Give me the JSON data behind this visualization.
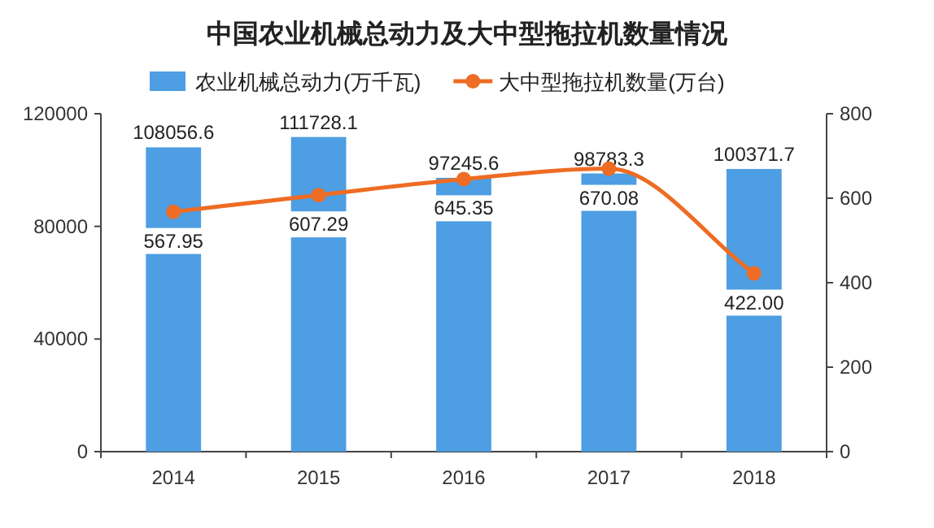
{
  "chart_data": {
    "type": "bar",
    "title": "中国农业机械总动力及大中型拖拉机数量情况",
    "categories": [
      "2014",
      "2015",
      "2016",
      "2017",
      "2018"
    ],
    "series": [
      {
        "name": "农业机械总动力(万千瓦)",
        "color": "#4d9ee2",
        "values": [
          108056.6,
          111728.1,
          97245.6,
          98783.3,
          100371.7
        ],
        "value_labels": [
          "108056.6",
          "111728.1",
          "97245.6",
          "98783.3",
          "100371.7"
        ]
      },
      {
        "name": "大中型拖拉机数量(万台)",
        "type": "line",
        "axis": "y2",
        "color": "#ee6c23",
        "marker": "circle",
        "values": [
          567.95,
          607.29,
          645.35,
          670.08,
          422.0
        ],
        "value_labels": [
          "567.95",
          "607.29",
          "645.35",
          "670.08",
          "422.00"
        ]
      }
    ],
    "ylim": [
      0,
      120000
    ],
    "yticks": [
      0,
      40000,
      80000,
      120000
    ],
    "y2lim": [
      0,
      800
    ],
    "y2ticks": [
      0,
      200,
      400,
      600,
      800
    ],
    "grid": false,
    "legend": "top"
  }
}
